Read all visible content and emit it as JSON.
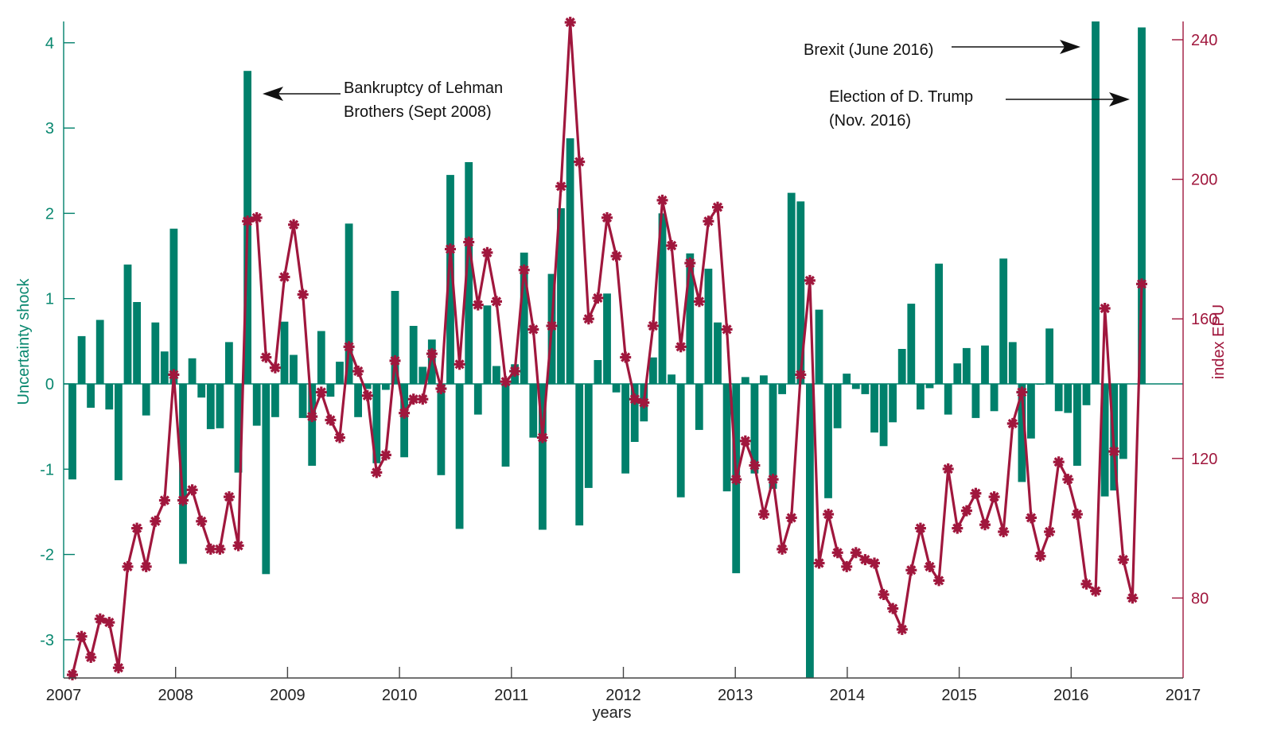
{
  "chart_data": {
    "type": "bar+line",
    "xlabel": "years",
    "ylabel_left": "Uncertainty shock",
    "ylabel_right": "index EPU",
    "xlim": [
      2007,
      2017
    ],
    "ylim_left": [
      -3.45,
      4.3
    ],
    "ylim_right": [
      58,
      246
    ],
    "x_ticks": [
      "2007",
      "2008",
      "2009",
      "2010",
      "2011",
      "2012",
      "2013",
      "2014",
      "2015",
      "2016",
      "2017"
    ],
    "y_ticks_left": [
      "-3",
      "-2",
      "-1",
      "0",
      "1",
      "2",
      "3",
      "4"
    ],
    "y_ticks_right": [
      "80",
      "120",
      "160",
      "200",
      "240"
    ],
    "colors": {
      "bars": "#00806b",
      "line": "#a0173d",
      "axis": "#444444"
    },
    "series": [
      {
        "name": "Uncertainty shock",
        "axis": "left",
        "type": "bar",
        "values": [
          -1.12,
          0.56,
          -0.28,
          0.75,
          -0.3,
          -1.13,
          1.4,
          0.96,
          -0.37,
          0.72,
          0.38,
          1.82,
          -2.11,
          0.3,
          -0.16,
          -0.53,
          -0.52,
          0.49,
          -1.04,
          3.67,
          -0.49,
          -2.23,
          -0.39,
          0.73,
          0.34,
          -0.4,
          -0.96,
          0.62,
          -0.15,
          0.26,
          1.88,
          -0.39,
          -0.06,
          -0.93,
          -0.07,
          1.09,
          -0.86,
          0.68,
          0.2,
          0.52,
          -1.07,
          2.45,
          -1.7,
          2.6,
          -0.36,
          0.92,
          0.21,
          -0.97,
          0.23,
          1.54,
          -0.63,
          -1.71,
          1.29,
          2.06,
          2.88,
          -1.66,
          -1.22,
          0.28,
          1.06,
          -0.1,
          -1.05,
          -0.68,
          -0.44,
          0.31,
          2.0,
          0.11,
          -1.33,
          1.53,
          -0.54,
          1.35,
          0.72,
          -1.26,
          -2.22,
          0.08,
          -1.05,
          0.1,
          -1.23,
          -0.12,
          2.24,
          2.14,
          -3.5,
          0.87,
          -1.34,
          -0.52,
          0.12,
          -0.06,
          -0.12,
          -0.57,
          -0.73,
          -0.45,
          0.41,
          0.94,
          -0.3,
          -0.05,
          1.41,
          -0.36,
          0.24,
          0.42,
          -0.4,
          0.45,
          -0.32,
          1.47,
          0.49,
          -1.15,
          -0.64,
          -0.01,
          0.65,
          -0.32,
          -0.34,
          -0.96,
          -0.25,
          4.5,
          -1.32,
          -1.25,
          -0.88,
          0,
          4.18
        ]
      },
      {
        "name": "index EPU",
        "axis": "right",
        "type": "line",
        "marker": "asterisk",
        "values": [
          58,
          69,
          63,
          74,
          73,
          60,
          89,
          100,
          89,
          102,
          108,
          144,
          108,
          111,
          102,
          94,
          94,
          109,
          95,
          188,
          189,
          149,
          146,
          172,
          187,
          167,
          132,
          139,
          131,
          126,
          152,
          145,
          138,
          116,
          121,
          148,
          133,
          137,
          137,
          150,
          140,
          180,
          147,
          182,
          164,
          179,
          165,
          142,
          145,
          174,
          157,
          126,
          158,
          198,
          245,
          205,
          160,
          166,
          189,
          178,
          149,
          137,
          136,
          158,
          194,
          181,
          152,
          176,
          165,
          188,
          192,
          157,
          114,
          125,
          118,
          104,
          114,
          94,
          103,
          144,
          171,
          90,
          104,
          93,
          89,
          93,
          91,
          90,
          81,
          77,
          71,
          88,
          100,
          89,
          85,
          117,
          100,
          105,
          110,
          101,
          109,
          99,
          130,
          139,
          103,
          92,
          99,
          119,
          114,
          104,
          84,
          82,
          163,
          122,
          91,
          80,
          170
        ]
      }
    ],
    "annotations": [
      {
        "line1": "Bankruptcy of Lehman",
        "line2": "Brothers (Sept 2008)"
      },
      {
        "line1": "Brexit (June 2016)"
      },
      {
        "line1": "Election of D. Trump",
        "line2": "(Nov. 2016)"
      }
    ]
  }
}
